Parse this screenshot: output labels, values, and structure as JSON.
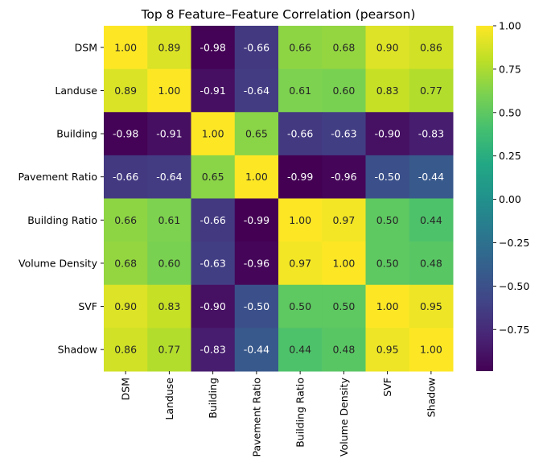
{
  "chart_data": {
    "type": "heatmap",
    "title": "Top 8 Feature–Feature Correlation (pearson)",
    "xlabel": "",
    "ylabel": "",
    "row_labels": [
      "DSM",
      "Landuse",
      "Building",
      "Pavement Ratio",
      "Building Ratio",
      "Volume Density",
      "SVF",
      "Shadow"
    ],
    "col_labels": [
      "DSM",
      "Landuse",
      "Building",
      "Pavement Ratio",
      "Building Ratio",
      "Volume Density",
      "SVF",
      "Shadow"
    ],
    "values": [
      [
        1.0,
        0.89,
        -0.98,
        -0.66,
        0.66,
        0.68,
        0.9,
        0.86
      ],
      [
        0.89,
        1.0,
        -0.91,
        -0.64,
        0.61,
        0.6,
        0.83,
        0.77
      ],
      [
        -0.98,
        -0.91,
        1.0,
        0.65,
        -0.66,
        -0.63,
        -0.9,
        -0.83
      ],
      [
        -0.66,
        -0.64,
        0.65,
        1.0,
        -0.99,
        -0.96,
        -0.5,
        -0.44
      ],
      [
        0.66,
        0.61,
        -0.66,
        -0.99,
        1.0,
        0.97,
        0.5,
        0.44
      ],
      [
        0.68,
        0.6,
        -0.63,
        -0.96,
        0.97,
        1.0,
        0.5,
        0.48
      ],
      [
        0.9,
        0.83,
        -0.9,
        -0.5,
        0.5,
        0.5,
        1.0,
        0.95
      ],
      [
        0.86,
        0.77,
        -0.83,
        -0.44,
        0.44,
        0.48,
        0.95,
        1.0
      ]
    ],
    "annotation_format": "0.00",
    "colormap": "viridis",
    "color_range": [
      -0.99,
      1.0
    ],
    "colorbar": {
      "ticks": [
        1.0,
        0.75,
        0.5,
        0.25,
        0.0,
        -0.25,
        -0.5,
        -0.75
      ],
      "tick_labels": [
        "1.00",
        "0.75",
        "0.50",
        "0.25",
        "0.00",
        "−0.25",
        "−0.50",
        "−0.75"
      ],
      "placement": "right"
    },
    "grid": false
  }
}
